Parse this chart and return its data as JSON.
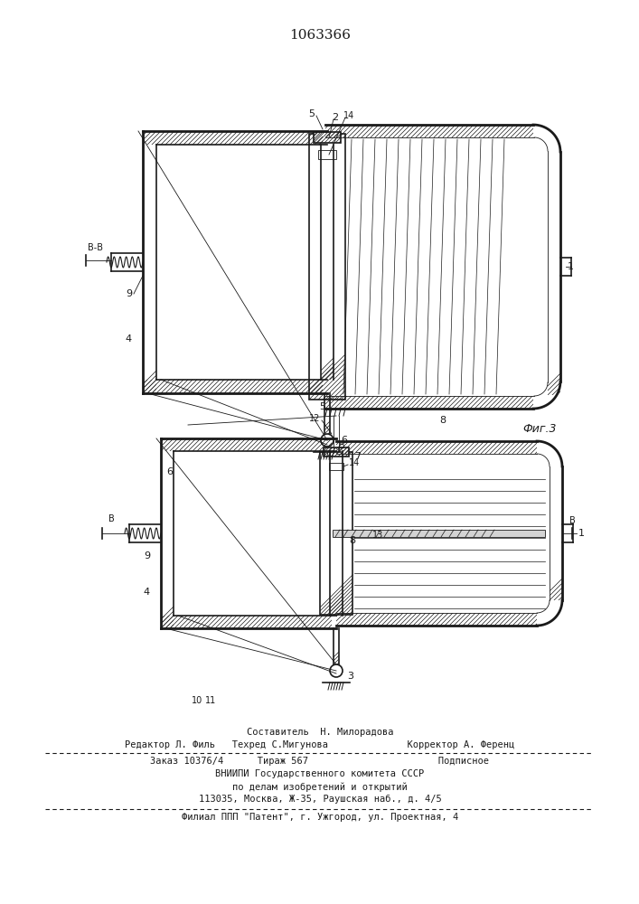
{
  "patent_number": "1063366",
  "bg_color": "#ffffff",
  "line_color": "#1a1a1a",
  "fig3_label": "Фиг.3",
  "footer": {
    "sestavitel": "Составитель  Н. Милорадова",
    "redaktor": "Редактор Л. Филь   Техред С.Мигунова              Корректор А. Ференц",
    "zakaz": "Заказ 10376/4      Тираж 567                       Подписное",
    "vnipi": "ВНИИПИ Государственного комитета СССР",
    "po_delam": "по делам изобретений и открытий",
    "address": "113035, Москва, Ж-35, Раушская наб., д. 4/5",
    "filial": "Филиал ППП \"Патент\", г. Ужгород, ул. Проектная, 4"
  }
}
